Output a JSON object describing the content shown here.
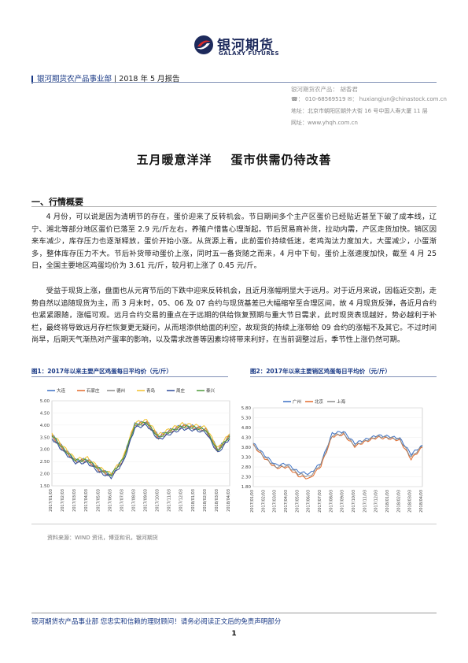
{
  "header": {
    "company_cn": "银河期货",
    "company_en": "GALAXY FUTURES",
    "department": "银河期货农产品事业部",
    "report_date": "2018 年 5 月报告"
  },
  "contact": {
    "analyst": "银河期货农产品：  胡香君",
    "phone": "☎： 010-68569519 ✉： huxiangjun@chinastock.com.cn",
    "address": "地址：北京市朝阳区朝外大街 16 号中国人寿大厦 11 层",
    "website": "网址：www.yhqh.com.cn"
  },
  "title": {
    "part1": "五月暖意洋洋",
    "part2": "蛋市供需仍待改善"
  },
  "section1": {
    "heading": "一、行情概要"
  },
  "paragraphs": [
    "4 月份，可以说是因为清明节的存在，蛋价迎来了反转机会。节日期间多个主产区蛋价已经贴近甚至下破了成本线，辽宁、湘北等部分地区蛋价已落至 2.9 元/斤左右，养殖户惜售心理渐起。节后贸易商补货，拉动内需，产区走货加快。销区因来车减少，库存压力也逐渐释放，蛋价开始小涨。从货源上看，此前蛋价持续低迷，老鸡淘汰力度加大，大蛋减少，小蛋渐多，整体库存压力不大。节后补货带动蛋价上涨，同时五一备货随之而来，4 月中下旬，蛋价上涨速度加快，截至 4 月 25 日，全国主要地区鸡蛋均价为 3.61 元/斤，较月初上涨了 0.45 元/斤。",
    "受益于现货上涨，盘面也从元宵节后的下跌中迎来反转机会，且近月涨幅明显大于远月。对于近月来说，因临近交割，走势自然以追随现货为主，而 3 月末时，05、06 及 07 合约与现货基差已大幅缩窄至合理区间，故 4 月现货反弹，各近月合约也紧紧跟随，涨幅可观。远月合约交易的重点在于远期的供给恢复预期与重大节日需求，此时现货表现越好，势必越利于补栏，最终将导致远月存栏恢复更无疑问，从而增添供给面的利空，故现货的持续上涨带给 09 合约的涨幅不及其它。不过时间尚早，后期天气渐热对产蛋率的影响，以及需求改善等因素均将带来利好，在当前调整过后，季节性上涨仍然可期。"
  ],
  "figure1": {
    "caption": "图1：2017年以来主要产区鸡蛋每日平均价（元/斤）"
  },
  "figure2": {
    "caption": "图2：2017年以来主要销区鸡蛋每日平均价（元/斤）"
  },
  "chart_data": [
    {
      "type": "line",
      "title": "",
      "ylim": [
        1.5,
        5.0
      ],
      "yticks": [
        "1.50",
        "2.00",
        "2.50",
        "3.00",
        "3.50",
        "4.00",
        "4.50",
        "5.00"
      ],
      "x": [
        "2017/01/03",
        "2017/02/03",
        "2017/03/03",
        "2017/04/03",
        "2017/05/03",
        "2017/06/03",
        "2017/07/03",
        "2017/08/03",
        "2017/09/03",
        "2017/10/03",
        "2017/11/03",
        "2017/12/03",
        "2018/01/03",
        "2018/02/03",
        "2018/03/03",
        "2018/04/03"
      ],
      "legend_position": "top",
      "series": [
        {
          "name": "大连",
          "color": "#3a6fc4",
          "values": [
            3.6,
            3.05,
            2.55,
            2.6,
            2.2,
            1.95,
            2.6,
            4.05,
            4.15,
            3.55,
            3.8,
            4.0,
            3.95,
            3.85,
            3.0,
            3.6
          ]
        },
        {
          "name": "石家庄",
          "color": "#e26b2c",
          "values": [
            3.55,
            3.0,
            2.5,
            2.55,
            2.15,
            1.9,
            2.55,
            4.0,
            4.1,
            3.5,
            3.75,
            3.95,
            3.9,
            3.8,
            2.95,
            3.55
          ]
        },
        {
          "name": "德州",
          "color": "#8c8c8c",
          "values": [
            3.5,
            2.95,
            2.5,
            2.5,
            2.1,
            1.9,
            2.5,
            3.95,
            4.05,
            3.45,
            3.7,
            3.9,
            3.85,
            3.75,
            2.9,
            3.5
          ]
        },
        {
          "name": "青岛",
          "color": "#f2c12e",
          "values": [
            3.65,
            3.1,
            2.6,
            2.65,
            2.25,
            2.0,
            2.65,
            4.1,
            4.2,
            3.6,
            3.85,
            4.05,
            4.0,
            3.9,
            3.05,
            3.65
          ]
        },
        {
          "name": "周庄",
          "color": "#2d4a9a",
          "values": [
            3.45,
            2.9,
            2.45,
            2.45,
            2.05,
            1.85,
            2.45,
            3.9,
            4.0,
            3.4,
            3.65,
            3.85,
            3.8,
            3.7,
            2.85,
            3.45
          ]
        },
        {
          "name": "泰兴",
          "color": "#4f9a3a",
          "values": [
            3.6,
            3.0,
            2.55,
            2.55,
            2.2,
            1.95,
            2.6,
            4.0,
            4.1,
            3.5,
            3.75,
            3.95,
            3.9,
            3.8,
            2.95,
            3.55
          ]
        }
      ]
    },
    {
      "type": "line",
      "title": "",
      "ylim": [
        1.8,
        5.8
      ],
      "yticks": [
        "1.80",
        "2.30",
        "2.80",
        "3.30",
        "3.80",
        "4.30",
        "4.80",
        "5.30",
        "5.80"
      ],
      "x": [
        "2017/01/03",
        "2017/02/03",
        "2017/03/03",
        "2017/04/03",
        "2017/05/03",
        "2017/06/03",
        "2017/07/03",
        "2017/08/03",
        "2017/09/03",
        "2017/10/03",
        "2017/11/03",
        "2017/12/03",
        "2018/01/03",
        "2018/02/03",
        "2018/03/03",
        "2018/04/03"
      ],
      "legend_position": "top",
      "series": [
        {
          "name": "广州",
          "color": "#3a6fc4",
          "values": [
            4.0,
            3.4,
            2.9,
            2.95,
            2.55,
            2.45,
            3.0,
            4.5,
            4.6,
            4.0,
            4.2,
            4.4,
            4.35,
            4.25,
            3.45,
            3.9
          ]
        },
        {
          "name": "北京",
          "color": "#e26b2c",
          "values": [
            3.9,
            3.25,
            2.75,
            2.8,
            2.35,
            2.2,
            2.85,
            4.35,
            4.45,
            3.85,
            4.1,
            4.3,
            4.25,
            4.15,
            3.2,
            3.8
          ]
        },
        {
          "name": "上海",
          "color": "#8c8c8c",
          "values": [
            3.95,
            3.3,
            2.8,
            2.85,
            2.45,
            2.3,
            2.95,
            4.4,
            4.5,
            3.9,
            4.15,
            4.35,
            4.3,
            4.2,
            3.3,
            3.85
          ]
        }
      ]
    }
  ],
  "source": "资料来源：WIND 资讯，博亚和讯，银河期货",
  "footer": {
    "text": "银河期货农产品事业部  您忠实和信赖的理财顾问！请务必阅读正文后的免责声明部分",
    "page": "1"
  }
}
